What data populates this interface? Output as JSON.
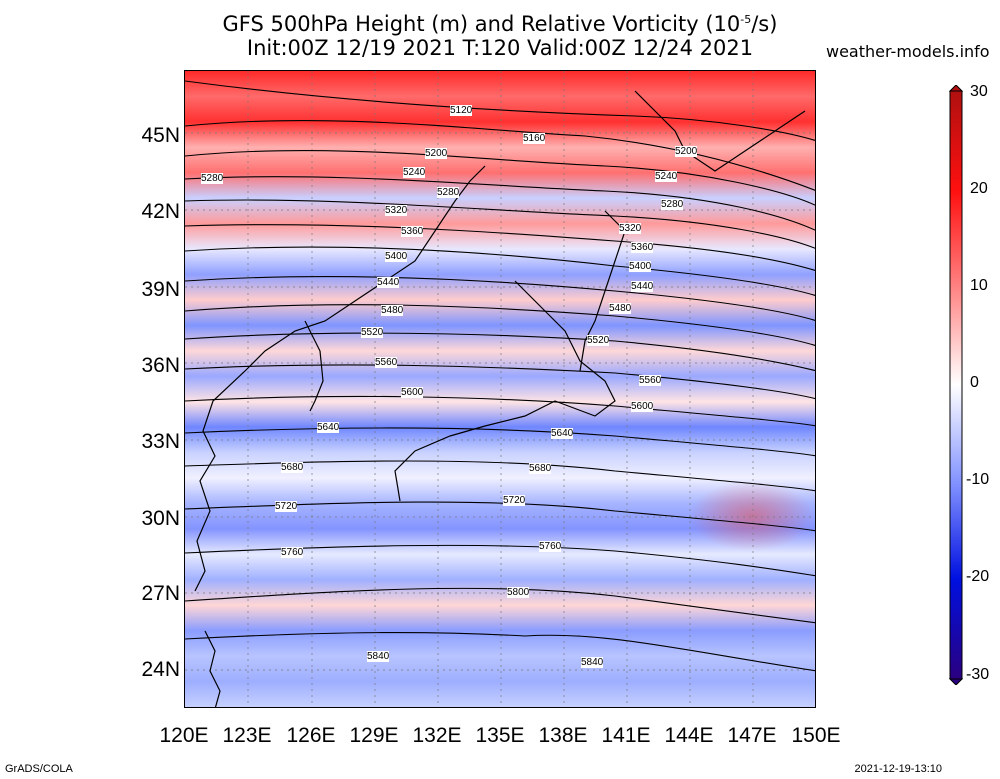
{
  "title_line1": "GFS 500hPa Height (m) and Relative Vorticity (10",
  "title_exp": "-5",
  "title_end": "/s)",
  "title_line2": "Init:00Z 12/19 2021 T:120 Valid:00Z 12/24 2021",
  "site": "weather-models.info",
  "footer_left": "GrADS/COLA",
  "footer_right": "2021-12-19-13:10",
  "lat_labels": [
    "45N",
    "42N",
    "39N",
    "36N",
    "33N",
    "30N",
    "27N",
    "24N"
  ],
  "lon_labels": [
    "120E",
    "123E",
    "126E",
    "129E",
    "132E",
    "135E",
    "138E",
    "141E",
    "144E",
    "147E",
    "150E"
  ],
  "colorbar_ticks": [
    "30",
    "20",
    "10",
    "0",
    "-10",
    "-20",
    "-30"
  ],
  "colors": {
    "positive": "#ff0000",
    "negative": "#0000d0",
    "zero": "#ffffff",
    "max": "#b01010",
    "min": "#2a0080"
  },
  "contour_labels": {
    "l5120": "5120",
    "l5160": "5160",
    "l5200a": "5200",
    "l5200b": "5200",
    "l5240a": "5240",
    "l5240b": "5240",
    "l5280a": "5280",
    "l5280b": "5280",
    "l5280c": "5280",
    "l5320a": "5320",
    "l5320b": "5320",
    "l5360a": "5360",
    "l5360b": "5360",
    "l5400a": "5400",
    "l5400b": "5400",
    "l5440a": "5440",
    "l5440b": "5440",
    "l5480a": "5480",
    "l5480b": "5480",
    "l5520a": "5520",
    "l5520b": "5520",
    "l5560a": "5560",
    "l5560b": "5560",
    "l5600a": "5600",
    "l5600b": "5600",
    "l5640a": "5640",
    "l5640b": "5640",
    "l5680a": "5680",
    "l5680b": "5680",
    "l5720a": "5720",
    "l5720b": "5720",
    "l5760a": "5760",
    "l5760b": "5760",
    "l5800": "5800",
    "l5840a": "5840",
    "l5840b": "5840"
  }
}
